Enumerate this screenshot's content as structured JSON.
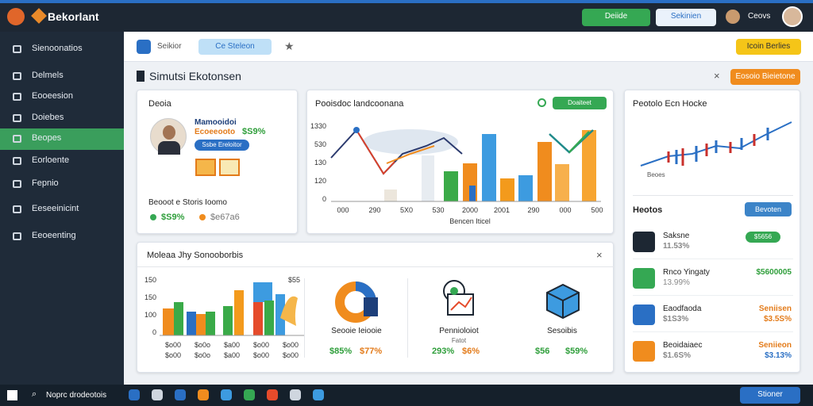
{
  "topbar": {
    "brand": "Bekorlant",
    "primary_button": "Deiide",
    "secondary_button": "Sekinien",
    "user": "Ceovs"
  },
  "sidebar": {
    "items": [
      "Sienoonatios",
      "Delmels",
      "Eooeesion",
      "Doiebes",
      "Beopes",
      "Eorloente",
      "Fepnio",
      "Eeseeinicint",
      "Eeoeenting"
    ],
    "active": 4
  },
  "toolbar": {
    "search": "Seikior",
    "tab": "Ce Steleon",
    "action": "Icoin Berlies"
  },
  "page": {
    "title": "Simutsi Ekotonsen",
    "button": "Eosoio Bieietone"
  },
  "profile_card": {
    "title": "Deoia",
    "name": "Mamooidoi",
    "role": "Ecoeeooto",
    "role_value": "$S9%",
    "pill": "Ssbe Ereloitor",
    "footer": "Beooot e Storis Ioomo",
    "stat_1": "$S9%",
    "stat_2": "$e67a6"
  },
  "main_chart": {
    "title": "Pooisdoc landcoonana",
    "button": "Doaiteet",
    "y_labels": [
      "1330",
      "530",
      "130",
      "120",
      "0"
    ],
    "x_labels": [
      "000",
      "290",
      "5X0",
      "530",
      "2000",
      "2001",
      "290",
      "000",
      "500"
    ],
    "x_title": "Bencen Iticel"
  },
  "side_card": {
    "title": "Peotolo Ecn Hocke",
    "chart_label": "Beoes",
    "section": "Heotos",
    "dropdown": "Bevoten",
    "items": [
      {
        "name": "Saksne",
        "sub": "11.53%",
        "right": "$5656",
        "right_sub": ""
      },
      {
        "name": "Rnco Yingaty",
        "sub": "13.99%",
        "right": "$5600005",
        "right_sub": ""
      },
      {
        "name": "Eaodfaoda",
        "sub": "$1S3%",
        "right": "Seniisen",
        "right_sub": "$3.5S%"
      },
      {
        "name": "Beoidaiaec",
        "sub": "$1.6S%",
        "right": "Seniieon",
        "right_sub": "$3.13%"
      }
    ]
  },
  "bottom_card": {
    "title": "Moleaa Jhy Sonooborbis",
    "y_labels": [
      "150",
      "150",
      "100",
      "0"
    ],
    "x_labels": [
      "$o00",
      "$o0o",
      "$a00",
      "$o00",
      "$o00"
    ],
    "corner": "$55",
    "items": [
      {
        "label": "Seooie Ieiooie",
        "sub": "",
        "v1": "$85%",
        "v2": "$77%"
      },
      {
        "label": "Pennioloiot",
        "sub": "Fatot",
        "v1": "293%",
        "v2": "$6%"
      },
      {
        "label": "Sesoibis",
        "sub": "",
        "v1": "$56",
        "v2": "$59%"
      }
    ]
  },
  "taskbar": {
    "search": "Noprc drodeotois",
    "button": "Stioner"
  }
}
